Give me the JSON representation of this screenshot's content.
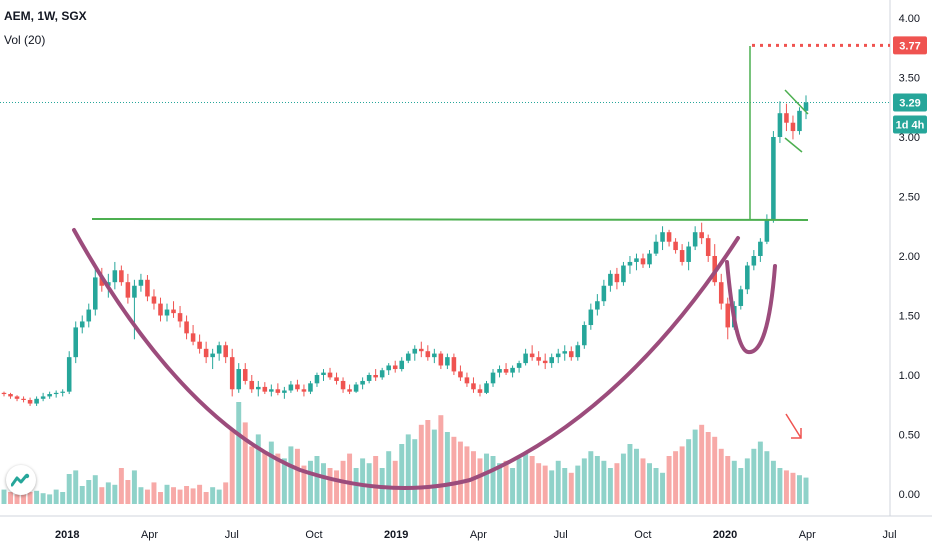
{
  "header": {
    "symbol_line": "AEM, 1W, SGX",
    "volume_label": "Vol (20)"
  },
  "price_axis": {
    "last_price_badge": "3.29",
    "countdown_badge": "1d 4h",
    "target_badge": "3.77"
  },
  "colors": {
    "up": "#26a69a",
    "down": "#ef5350",
    "vol_up": "#8fd2c9",
    "vol_down": "#f7a9a7",
    "cup": "#9c4c7c",
    "trendline": "#4caf50",
    "target": "#ef5350",
    "last_price": "#26a69a",
    "countdown": "#26a69a"
  },
  "chart_data": {
    "type": "candlestick",
    "y_axis": {
      "ticks": [
        0.0,
        0.5,
        1.0,
        1.5,
        2.0,
        2.5,
        3.0,
        3.5,
        4.0
      ],
      "tick_labels": [
        "0.00",
        "0.50",
        "1.00",
        "1.50",
        "2.00",
        "2.50",
        "3.00",
        "3.50",
        "4.00"
      ],
      "range": [
        -0.12,
        4.05
      ]
    },
    "x_axis": {
      "labels": [
        "2018",
        "Apr",
        "Jul",
        "Oct",
        "2019",
        "Apr",
        "Jul",
        "Oct",
        "2020",
        "Apr",
        "Jul"
      ],
      "bold_labels": [
        "2018",
        "2019",
        "2020"
      ]
    },
    "grid": false,
    "candles_ohlc": [
      [
        0.85,
        0.86,
        0.82,
        0.84
      ],
      [
        0.84,
        0.85,
        0.8,
        0.82
      ],
      [
        0.82,
        0.83,
        0.78,
        0.8
      ],
      [
        0.8,
        0.82,
        0.77,
        0.79
      ],
      [
        0.79,
        0.81,
        0.74,
        0.76
      ],
      [
        0.76,
        0.82,
        0.74,
        0.8
      ],
      [
        0.8,
        0.85,
        0.78,
        0.82
      ],
      [
        0.82,
        0.86,
        0.8,
        0.84
      ],
      [
        0.84,
        0.87,
        0.81,
        0.85
      ],
      [
        0.85,
        0.88,
        0.82,
        0.86
      ],
      [
        0.86,
        1.2,
        0.84,
        1.15
      ],
      [
        1.15,
        1.45,
        1.1,
        1.4
      ],
      [
        1.4,
        1.5,
        1.35,
        1.45
      ],
      [
        1.45,
        1.6,
        1.4,
        1.55
      ],
      [
        1.55,
        1.9,
        1.5,
        1.82
      ],
      [
        1.82,
        1.9,
        1.7,
        1.75
      ],
      [
        1.75,
        1.85,
        1.65,
        1.78
      ],
      [
        1.78,
        1.95,
        1.72,
        1.88
      ],
      [
        1.88,
        1.92,
        1.75,
        1.78
      ],
      [
        1.78,
        1.85,
        1.6,
        1.65
      ],
      [
        1.65,
        1.8,
        1.3,
        1.75
      ],
      [
        1.75,
        1.85,
        1.7,
        1.8
      ],
      [
        1.8,
        1.84,
        1.62,
        1.66
      ],
      [
        1.66,
        1.72,
        1.55,
        1.6
      ],
      [
        1.6,
        1.65,
        1.45,
        1.5
      ],
      [
        1.5,
        1.6,
        1.45,
        1.55
      ],
      [
        1.55,
        1.62,
        1.48,
        1.52
      ],
      [
        1.52,
        1.58,
        1.4,
        1.45
      ],
      [
        1.45,
        1.5,
        1.3,
        1.35
      ],
      [
        1.35,
        1.42,
        1.25,
        1.28
      ],
      [
        1.28,
        1.34,
        1.18,
        1.22
      ],
      [
        1.22,
        1.28,
        1.1,
        1.15
      ],
      [
        1.15,
        1.22,
        1.05,
        1.18
      ],
      [
        1.18,
        1.28,
        1.12,
        1.25
      ],
      [
        1.25,
        1.28,
        1.1,
        1.15
      ],
      [
        1.15,
        1.22,
        0.82,
        0.88
      ],
      [
        0.88,
        1.1,
        0.85,
        1.05
      ],
      [
        1.05,
        1.1,
        0.92,
        0.95
      ],
      [
        0.95,
        1.0,
        0.85,
        0.88
      ],
      [
        0.88,
        0.95,
        0.82,
        0.9
      ],
      [
        0.9,
        0.94,
        0.84,
        0.86
      ],
      [
        0.86,
        0.92,
        0.82,
        0.88
      ],
      [
        0.88,
        0.93,
        0.83,
        0.85
      ],
      [
        0.85,
        0.9,
        0.8,
        0.87
      ],
      [
        0.87,
        0.95,
        0.85,
        0.92
      ],
      [
        0.92,
        0.96,
        0.86,
        0.88
      ],
      [
        0.88,
        0.92,
        0.82,
        0.86
      ],
      [
        0.86,
        0.95,
        0.84,
        0.93
      ],
      [
        0.93,
        1.02,
        0.9,
        1.0
      ],
      [
        1.0,
        1.05,
        0.95,
        1.02
      ],
      [
        1.02,
        1.06,
        0.96,
        0.98
      ],
      [
        0.98,
        1.02,
        0.92,
        0.95
      ],
      [
        0.95,
        0.98,
        0.85,
        0.88
      ],
      [
        0.88,
        0.92,
        0.84,
        0.86
      ],
      [
        0.86,
        0.94,
        0.85,
        0.92
      ],
      [
        0.92,
        0.98,
        0.88,
        0.95
      ],
      [
        0.95,
        1.02,
        0.93,
        1.0
      ],
      [
        1.0,
        1.05,
        0.95,
        0.98
      ],
      [
        0.98,
        1.06,
        0.96,
        1.04
      ],
      [
        1.04,
        1.1,
        1.0,
        1.08
      ],
      [
        1.08,
        1.12,
        1.02,
        1.05
      ],
      [
        1.05,
        1.15,
        1.03,
        1.12
      ],
      [
        1.12,
        1.2,
        1.1,
        1.18
      ],
      [
        1.18,
        1.25,
        1.12,
        1.22
      ],
      [
        1.22,
        1.28,
        1.15,
        1.2
      ],
      [
        1.2,
        1.25,
        1.12,
        1.15
      ],
      [
        1.15,
        1.22,
        1.1,
        1.18
      ],
      [
        1.18,
        1.2,
        1.05,
        1.08
      ],
      [
        1.08,
        1.18,
        1.05,
        1.15
      ],
      [
        1.15,
        1.18,
        1.0,
        1.03
      ],
      [
        1.03,
        1.08,
        0.95,
        0.98
      ],
      [
        0.98,
        1.02,
        0.9,
        0.93
      ],
      [
        0.93,
        0.98,
        0.85,
        0.88
      ],
      [
        0.88,
        0.92,
        0.82,
        0.85
      ],
      [
        0.85,
        0.95,
        0.84,
        0.93
      ],
      [
        0.93,
        1.05,
        0.9,
        1.02
      ],
      [
        1.02,
        1.08,
        0.98,
        1.05
      ],
      [
        1.05,
        1.1,
        1.0,
        1.02
      ],
      [
        1.02,
        1.08,
        0.98,
        1.06
      ],
      [
        1.06,
        1.12,
        1.02,
        1.1
      ],
      [
        1.1,
        1.22,
        1.08,
        1.18
      ],
      [
        1.18,
        1.25,
        1.12,
        1.15
      ],
      [
        1.15,
        1.2,
        1.08,
        1.12
      ],
      [
        1.12,
        1.18,
        1.05,
        1.1
      ],
      [
        1.1,
        1.18,
        1.06,
        1.15
      ],
      [
        1.15,
        1.22,
        1.1,
        1.18
      ],
      [
        1.18,
        1.25,
        1.12,
        1.2
      ],
      [
        1.2,
        1.24,
        1.12,
        1.15
      ],
      [
        1.15,
        1.28,
        1.12,
        1.25
      ],
      [
        1.25,
        1.45,
        1.22,
        1.42
      ],
      [
        1.42,
        1.6,
        1.38,
        1.55
      ],
      [
        1.55,
        1.68,
        1.5,
        1.62
      ],
      [
        1.62,
        1.8,
        1.58,
        1.75
      ],
      [
        1.75,
        1.88,
        1.7,
        1.85
      ],
      [
        1.85,
        1.9,
        1.72,
        1.78
      ],
      [
        1.78,
        1.95,
        1.75,
        1.92
      ],
      [
        1.92,
        2.0,
        1.85,
        1.95
      ],
      [
        1.95,
        2.02,
        1.88,
        1.98
      ],
      [
        1.98,
        2.02,
        1.9,
        1.93
      ],
      [
        1.93,
        2.05,
        1.9,
        2.02
      ],
      [
        2.02,
        2.18,
        2.0,
        2.12
      ],
      [
        2.12,
        2.25,
        2.05,
        2.2
      ],
      [
        2.2,
        2.22,
        2.08,
        2.12
      ],
      [
        2.12,
        2.15,
        2.02,
        2.05
      ],
      [
        2.05,
        2.1,
        1.92,
        1.95
      ],
      [
        1.95,
        2.12,
        1.88,
        2.08
      ],
      [
        2.08,
        2.25,
        2.05,
        2.2
      ],
      [
        2.2,
        2.28,
        2.1,
        2.15
      ],
      [
        2.15,
        2.18,
        1.95,
        2.0
      ],
      [
        2.0,
        2.1,
        1.75,
        1.78
      ],
      [
        1.78,
        1.85,
        1.55,
        1.6
      ],
      [
        1.6,
        1.65,
        1.3,
        1.4
      ],
      [
        1.4,
        1.62,
        1.38,
        1.58
      ],
      [
        1.58,
        1.75,
        1.55,
        1.72
      ],
      [
        1.72,
        1.95,
        1.68,
        1.92
      ],
      [
        1.92,
        2.05,
        1.88,
        2.0
      ],
      [
        2.0,
        2.15,
        1.95,
        2.12
      ],
      [
        2.12,
        2.35,
        2.1,
        2.3
      ],
      [
        2.3,
        3.05,
        2.28,
        3.0
      ],
      [
        3.0,
        3.3,
        2.95,
        3.2
      ],
      [
        3.2,
        3.28,
        3.05,
        3.12
      ],
      [
        3.12,
        3.18,
        2.98,
        3.05
      ],
      [
        3.05,
        3.25,
        3.02,
        3.22
      ],
      [
        3.22,
        3.35,
        3.15,
        3.29
      ]
    ],
    "volumes": [
      0.12,
      0.1,
      0.08,
      0.09,
      0.1,
      0.11,
      0.09,
      0.08,
      0.12,
      0.1,
      0.25,
      0.28,
      0.15,
      0.2,
      0.24,
      0.14,
      0.18,
      0.16,
      0.3,
      0.2,
      0.28,
      0.14,
      0.12,
      0.18,
      0.1,
      0.16,
      0.14,
      0.12,
      0.15,
      0.13,
      0.16,
      0.1,
      0.14,
      0.12,
      0.18,
      0.62,
      0.85,
      0.68,
      0.48,
      0.58,
      0.44,
      0.52,
      0.42,
      0.38,
      0.48,
      0.46,
      0.32,
      0.36,
      0.4,
      0.34,
      0.3,
      0.28,
      0.36,
      0.42,
      0.3,
      0.38,
      0.34,
      0.4,
      0.3,
      0.44,
      0.36,
      0.5,
      0.58,
      0.54,
      0.66,
      0.7,
      0.62,
      0.74,
      0.6,
      0.56,
      0.52,
      0.48,
      0.44,
      0.38,
      0.42,
      0.4,
      0.34,
      0.36,
      0.3,
      0.38,
      0.42,
      0.4,
      0.34,
      0.32,
      0.28,
      0.36,
      0.3,
      0.26,
      0.32,
      0.38,
      0.44,
      0.4,
      0.36,
      0.3,
      0.34,
      0.42,
      0.5,
      0.46,
      0.38,
      0.34,
      0.3,
      0.26,
      0.4,
      0.44,
      0.48,
      0.54,
      0.62,
      0.66,
      0.6,
      0.56,
      0.46,
      0.4,
      0.36,
      0.3,
      0.38,
      0.46,
      0.52,
      0.44,
      0.36,
      0.3,
      0.28,
      0.26,
      0.24,
      0.22
    ],
    "vol_colors_up": [
      true,
      false,
      false,
      false,
      false,
      true,
      true,
      true,
      true,
      true,
      true,
      true,
      true,
      true,
      true,
      false,
      true,
      true,
      false,
      false,
      true,
      true,
      false,
      false,
      false,
      true,
      false,
      false,
      false,
      false,
      false,
      false,
      true,
      true,
      false,
      false,
      true,
      false,
      false,
      true,
      false,
      true,
      false,
      true,
      true,
      false,
      false,
      true,
      true,
      true,
      false,
      false,
      false,
      false,
      true,
      true,
      true,
      false,
      true,
      true,
      false,
      true,
      true,
      true,
      false,
      false,
      true,
      false,
      true,
      false,
      false,
      false,
      false,
      false,
      true,
      true,
      true,
      false,
      true,
      true,
      true,
      false,
      false,
      false,
      true,
      true,
      true,
      false,
      true,
      true,
      true,
      true,
      true,
      true,
      false,
      true,
      true,
      true,
      false,
      true,
      true,
      true,
      false,
      false,
      false,
      true,
      true,
      false,
      false,
      false,
      false,
      false,
      true,
      true,
      true,
      true,
      true,
      true,
      true,
      true,
      false,
      false,
      true,
      true
    ],
    "annotations": {
      "target_price": 3.77,
      "neckline": 2.3,
      "last_price": 3.29
    }
  }
}
